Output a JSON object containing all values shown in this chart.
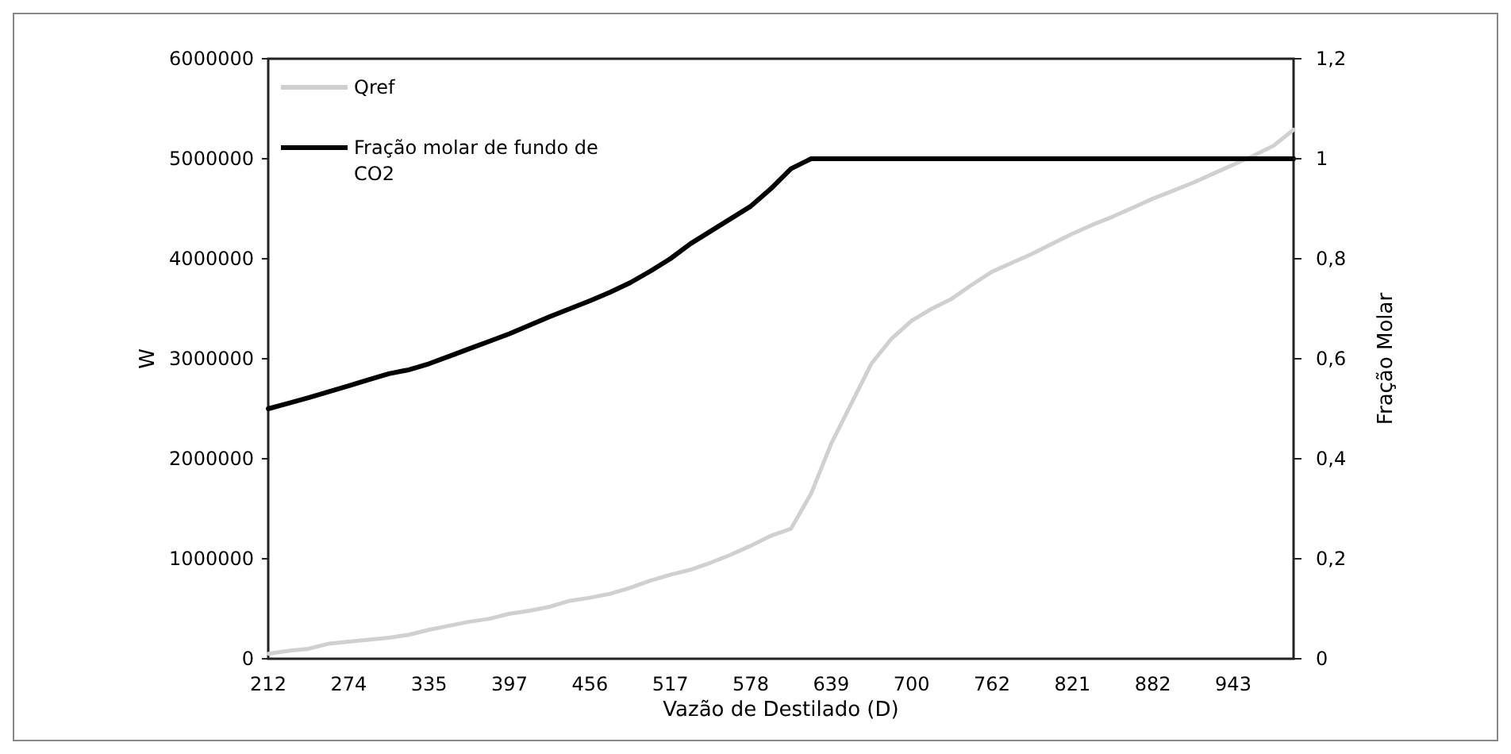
{
  "chart_data": {
    "type": "line",
    "xlabel": "Vazão de Destilado (D)",
    "ylabel": "W",
    "y2label": "Fração Molar",
    "categories": [
      "212",
      null,
      null,
      null,
      "274",
      null,
      null,
      null,
      "335",
      null,
      null,
      null,
      "397",
      null,
      null,
      null,
      "456",
      null,
      null,
      null,
      "517",
      null,
      null,
      null,
      "578",
      null,
      null,
      null,
      "639",
      null,
      null,
      null,
      "700",
      null,
      null,
      null,
      "762",
      null,
      null,
      null,
      "821",
      null,
      null,
      null,
      "882",
      null,
      null,
      null,
      "943",
      null,
      null,
      null
    ],
    "series": [
      {
        "name": "Qref",
        "color": "#d0d0d0",
        "values": [
          50000,
          80000,
          100000,
          150000,
          170000,
          190000,
          210000,
          240000,
          290000,
          330000,
          370000,
          400000,
          450000,
          480000,
          520000,
          580000,
          610000,
          650000,
          710000,
          780000,
          840000,
          890000,
          960000,
          1040000,
          1130000,
          1230000,
          1300000,
          1650000,
          2150000,
          2550000,
          2950000,
          3200000,
          3380000,
          3500000,
          3600000,
          3740000,
          3870000,
          3960000,
          4050000,
          4150000,
          4250000,
          4340000,
          4420000,
          4510000,
          4600000,
          4680000,
          4760000,
          4850000,
          4940000,
          5030000,
          5130000,
          5290000
        ]
      },
      {
        "name": "Fração molar de fundo de CO2",
        "color": "#000000",
        "axis": "y2",
        "values": [
          0.5,
          0.511,
          0.522,
          0.534,
          0.546,
          0.558,
          0.57,
          0.578,
          0.59,
          0.605,
          0.62,
          0.635,
          0.65,
          0.667,
          0.684,
          0.7,
          0.716,
          0.733,
          0.752,
          0.775,
          0.8,
          0.83,
          0.855,
          0.88,
          0.905,
          0.94,
          0.98,
          1,
          1,
          1,
          1,
          1,
          1,
          1,
          1,
          1,
          1,
          1,
          1,
          1,
          1,
          1,
          1,
          1,
          1,
          1,
          1,
          1,
          1,
          1,
          1,
          1
        ]
      }
    ],
    "ylim": [
      0,
      6000000
    ],
    "yticks": [
      0,
      1000000,
      2000000,
      3000000,
      4000000,
      5000000,
      6000000
    ],
    "y2lim": [
      0,
      1.2
    ],
    "y2ticks": [
      0,
      {
        "value": 0.2,
        "label": "0,2"
      },
      {
        "value": 0.4,
        "label": "0,4"
      },
      {
        "value": 0.6,
        "label": "0,6"
      },
      {
        "value": 0.8,
        "label": "0,8"
      },
      1,
      {
        "value": 1.2,
        "label": "1,2"
      }
    ],
    "grid": false,
    "legend": "top left",
    "marker": "none",
    "line_style": "solid"
  }
}
